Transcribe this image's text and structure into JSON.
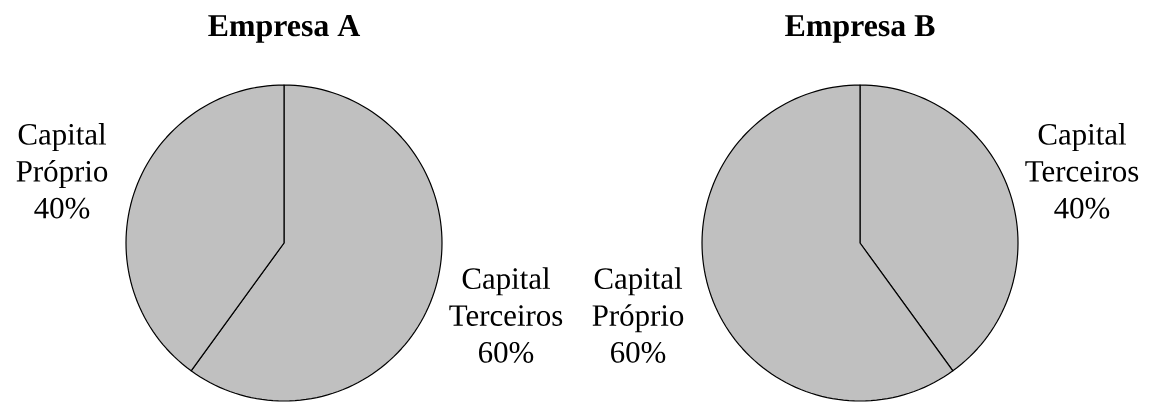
{
  "chart_data": [
    {
      "type": "pie",
      "title": "Empresa A",
      "categories": [
        "Capital Terceiros",
        "Capital Próprio"
      ],
      "values": [
        60,
        40
      ],
      "colors": [
        "#c0c0c0",
        "#c0c0c0"
      ],
      "value_labels": [
        "60%",
        "40%"
      ]
    },
    {
      "type": "pie",
      "title": "Empresa B",
      "categories": [
        "Capital Terceiros",
        "Capital Próprio"
      ],
      "values": [
        40,
        60
      ],
      "colors": [
        "#c0c0c0",
        "#c0c0c0"
      ],
      "value_labels": [
        "40%",
        "60%"
      ]
    }
  ]
}
